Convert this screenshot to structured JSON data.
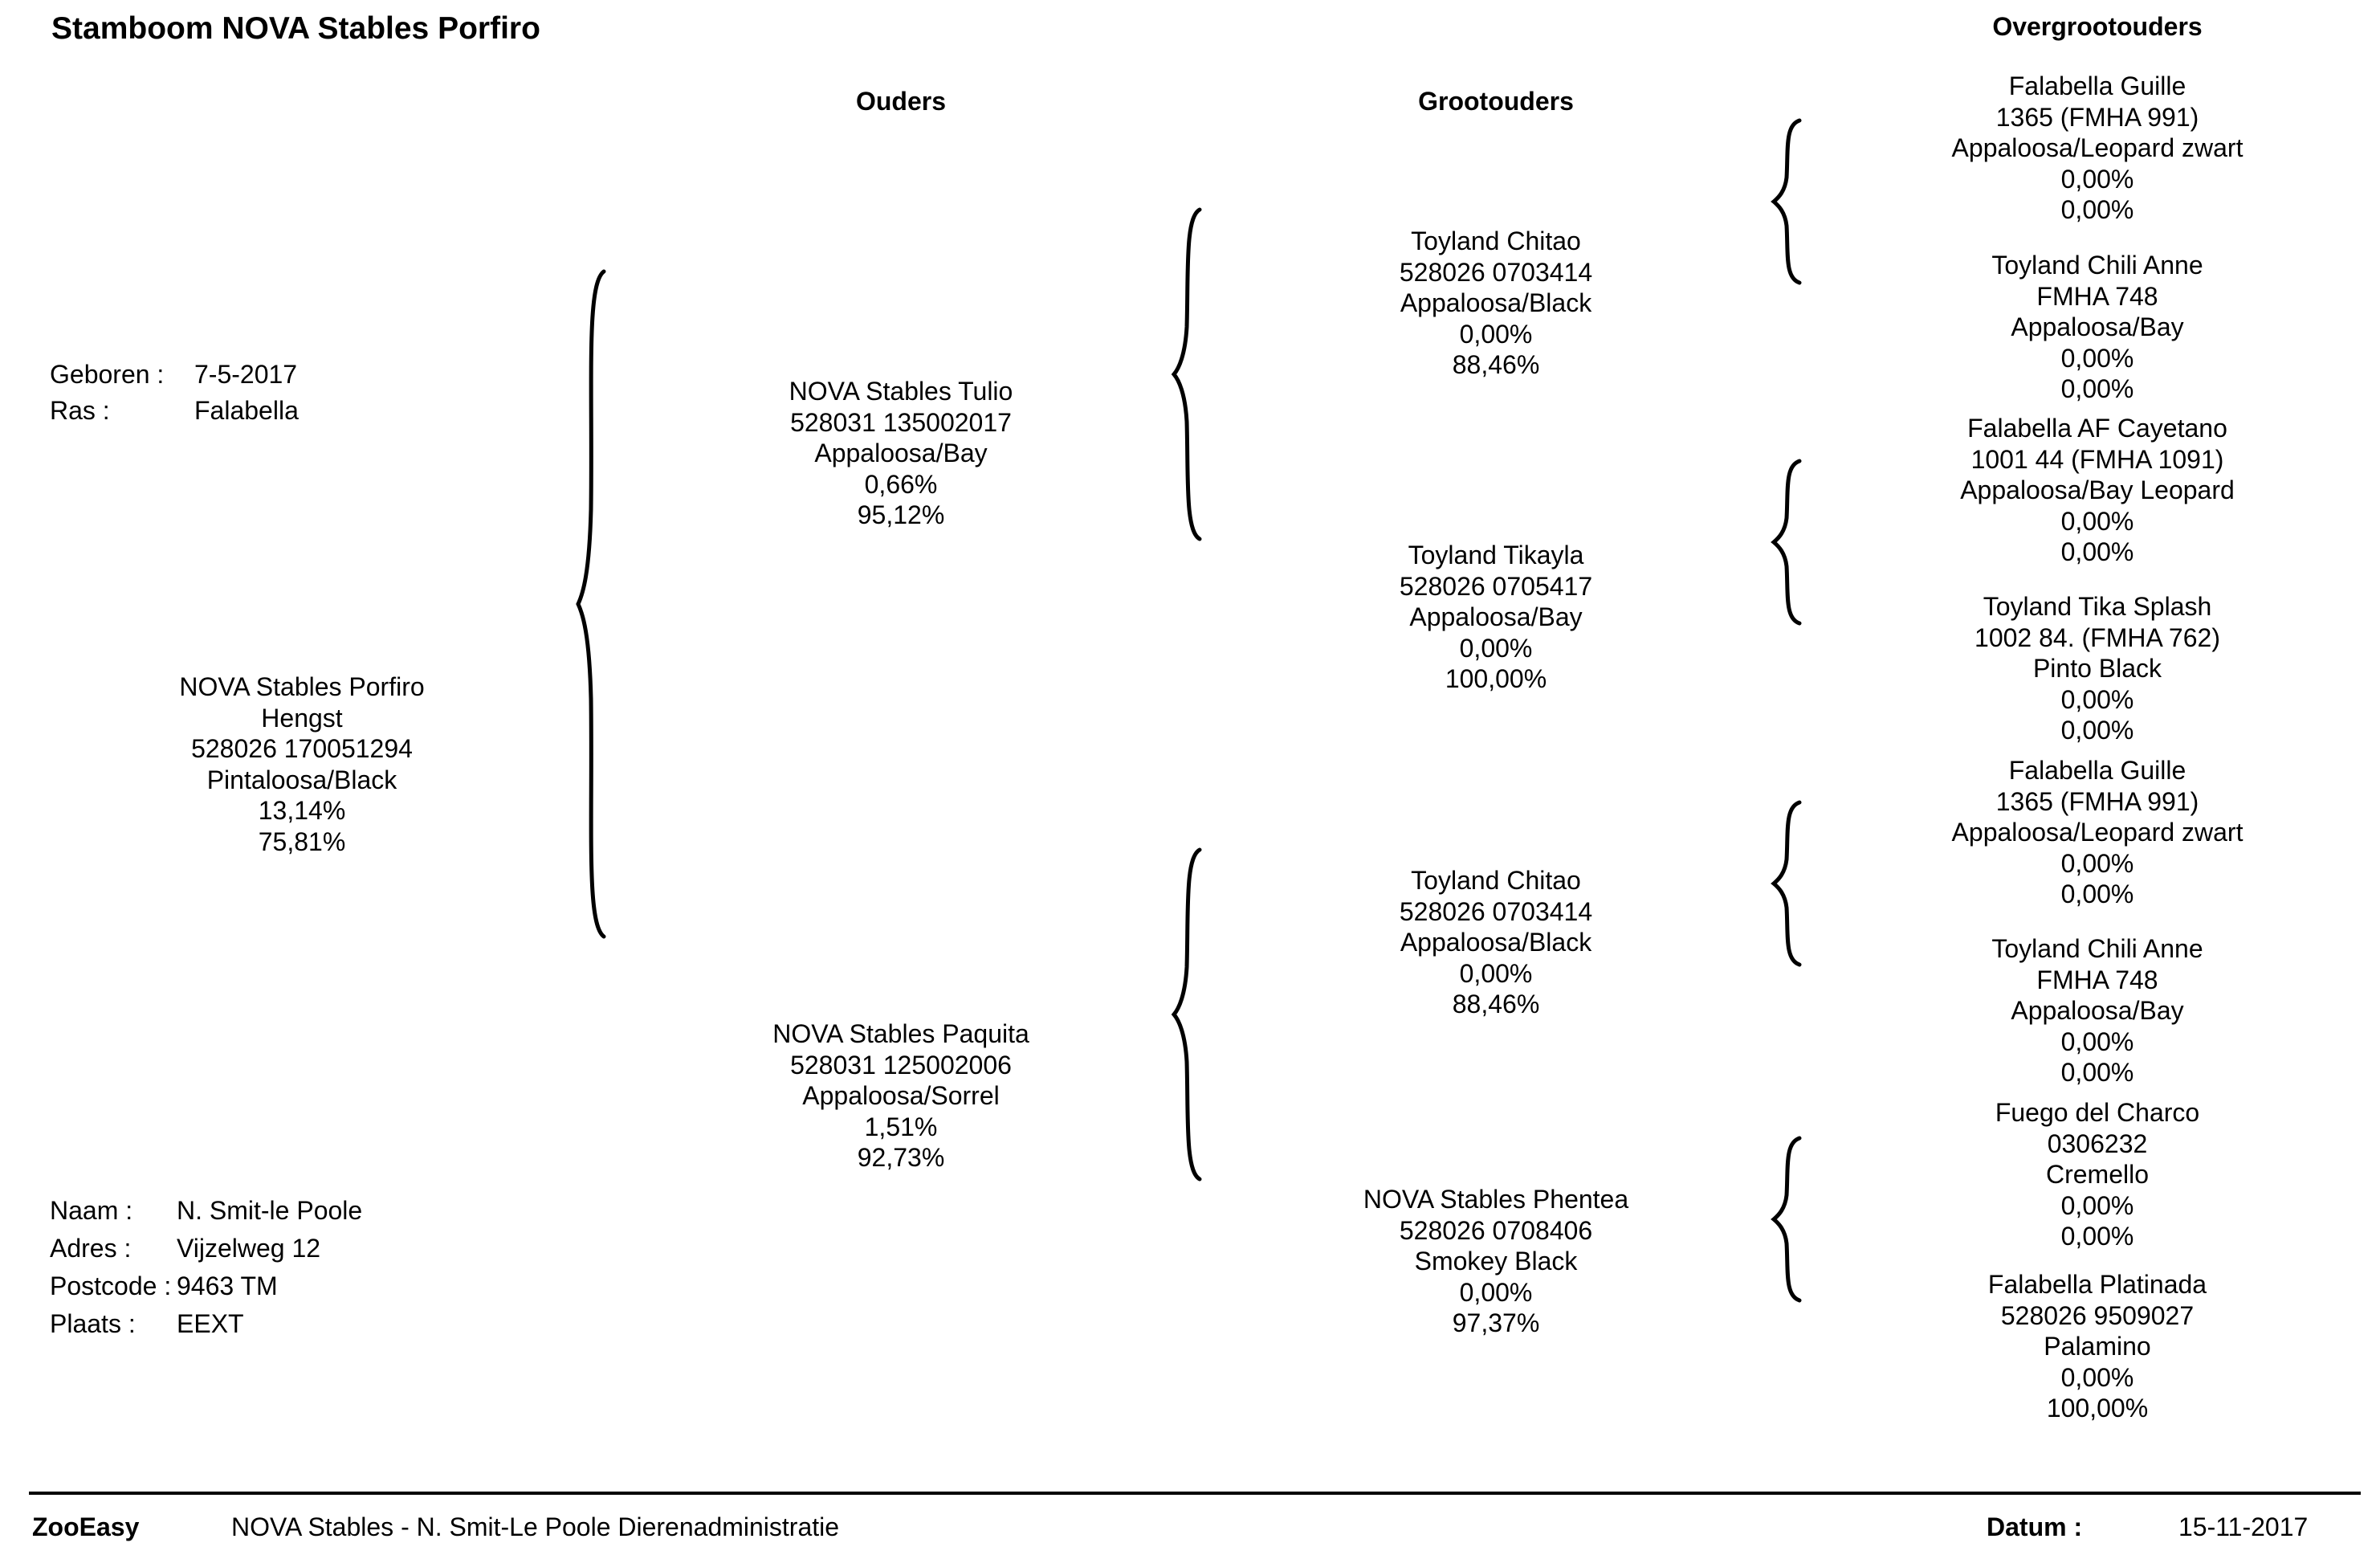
{
  "header": {
    "title": "Stamboom NOVA Stables Porfiro"
  },
  "columns": {
    "parents": "Ouders",
    "grandparents": "Grootouders",
    "great_grandparents": "Overgrootouders"
  },
  "animal": {
    "born_label": "Geboren :",
    "born_value": "7-5-2017",
    "breed_label": "Ras :",
    "breed_value": "Falabella",
    "lines": [
      "NOVA Stables Porfiro",
      "Hengst",
      "528026 170051294",
      "Pintaloosa/Black",
      "13,14%",
      "75,81%"
    ]
  },
  "parents": [
    {
      "lines": [
        "NOVA Stables Tulio",
        "528031 135002017",
        "Appaloosa/Bay",
        "0,66%",
        "95,12%"
      ]
    },
    {
      "lines": [
        "NOVA Stables Paquita",
        "528031 125002006",
        "Appaloosa/Sorrel",
        "1,51%",
        "92,73%"
      ]
    }
  ],
  "grandparents": [
    {
      "lines": [
        "Toyland Chitao",
        "528026 0703414",
        "Appaloosa/Black",
        "0,00%",
        "88,46%"
      ]
    },
    {
      "lines": [
        "Toyland Tikayla",
        "528026 0705417",
        "Appaloosa/Bay",
        "0,00%",
        "100,00%"
      ]
    },
    {
      "lines": [
        "Toyland Chitao",
        "528026 0703414",
        "Appaloosa/Black",
        "0,00%",
        "88,46%"
      ]
    },
    {
      "lines": [
        "NOVA Stables Phentea",
        "528026 0708406",
        "Smokey Black",
        "0,00%",
        "97,37%"
      ]
    }
  ],
  "great_grandparents": [
    {
      "lines": [
        "Falabella Guille",
        "1365 (FMHA 991)",
        "Appaloosa/Leopard zwart",
        "0,00%",
        "0,00%"
      ]
    },
    {
      "lines": [
        "Toyland Chili Anne",
        "FMHA 748",
        "Appaloosa/Bay",
        "0,00%",
        "0,00%"
      ]
    },
    {
      "lines": [
        "Falabella AF Cayetano",
        "1001 44 (FMHA 1091)",
        "Appaloosa/Bay Leopard",
        "0,00%",
        "0,00%"
      ]
    },
    {
      "lines": [
        "Toyland Tika Splash",
        "1002 84. (FMHA 762)",
        "Pinto Black",
        "0,00%",
        "0,00%"
      ]
    },
    {
      "lines": [
        "Falabella Guille",
        "1365 (FMHA 991)",
        "Appaloosa/Leopard zwart",
        "0,00%",
        "0,00%"
      ]
    },
    {
      "lines": [
        "Toyland Chili Anne",
        "FMHA 748",
        "Appaloosa/Bay",
        "0,00%",
        "0,00%"
      ]
    },
    {
      "lines": [
        "Fuego del Charco",
        "0306232",
        "Cremello",
        "0,00%",
        "0,00%"
      ]
    },
    {
      "lines": [
        "Falabella Platinada",
        "528026 9509027",
        "Palamino",
        "0,00%",
        "100,00%"
      ]
    }
  ],
  "owner": {
    "name_label": "Naam :",
    "name_value": "N.  Smit-le Poole",
    "address_label": "Adres :",
    "address_value": "Vijzelweg 12",
    "postcode_label": "Postcode :",
    "postcode_value": "9463 TM",
    "city_label": "Plaats :",
    "city_value": "EEXT"
  },
  "footer": {
    "brand": "ZooEasy",
    "description": "NOVA Stables - N. Smit-Le Poole Dierenadministratie",
    "date_label": "Datum :",
    "date_value": "15-11-2017"
  }
}
